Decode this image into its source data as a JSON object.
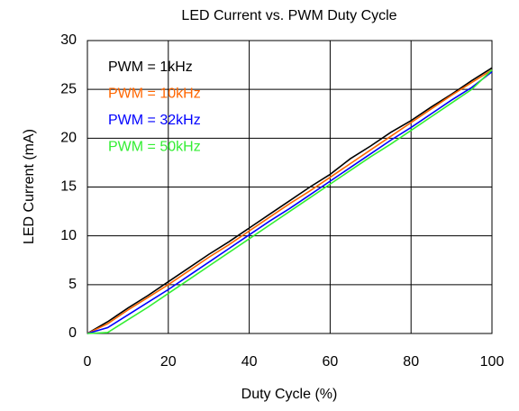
{
  "chart_data": {
    "type": "line",
    "title": "LED Current  vs. PWM Duty Cycle",
    "x_label": "Duty Cycle (%)",
    "y_label": "LED Current (mA)",
    "x": [
      0,
      5,
      10,
      15,
      20,
      25,
      30,
      35,
      40,
      45,
      50,
      55,
      60,
      65,
      70,
      75,
      80,
      85,
      90,
      95,
      100
    ],
    "series": [
      {
        "name": "PWM = 1kHz",
        "color": "#000000",
        "values": [
          0,
          1.2,
          2.6,
          3.9,
          5.3,
          6.7,
          8.1,
          9.4,
          10.8,
          12.2,
          13.6,
          15.0,
          16.3,
          17.9,
          19.2,
          20.6,
          21.8,
          23.2,
          24.5,
          25.9,
          27.2
        ]
      },
      {
        "name": "PWM = 10kHz",
        "color": "#ff6600",
        "values": [
          0,
          1.0,
          2.4,
          3.7,
          5.0,
          6.4,
          7.8,
          9.1,
          10.5,
          11.9,
          13.3,
          14.6,
          16.0,
          17.4,
          18.8,
          20.2,
          21.6,
          23.0,
          24.4,
          25.7,
          27.0
        ]
      },
      {
        "name": "PWM = 32kHz",
        "color": "#0000ff",
        "values": [
          0,
          0.6,
          1.9,
          3.2,
          4.5,
          5.9,
          7.3,
          8.7,
          10.1,
          11.5,
          12.8,
          14.2,
          15.6,
          17.0,
          18.4,
          19.8,
          21.1,
          22.5,
          23.9,
          25.2,
          26.8
        ]
      },
      {
        "name": "PWM = 50kHz",
        "color": "#33ee33",
        "values": [
          0,
          0.1,
          1.4,
          2.7,
          4.1,
          5.5,
          6.9,
          8.3,
          9.7,
          11.1,
          12.5,
          13.9,
          15.3,
          16.7,
          18.1,
          19.4,
          20.8,
          22.2,
          23.6,
          25.0,
          27.0
        ]
      }
    ],
    "xlim": [
      0,
      100
    ],
    "xticks": [
      0,
      20,
      40,
      60,
      80,
      100
    ],
    "ylim": [
      0,
      30
    ],
    "yticks": [
      0,
      5,
      10,
      15,
      20,
      25,
      30
    ],
    "grid": true,
    "legend": "upper left"
  }
}
